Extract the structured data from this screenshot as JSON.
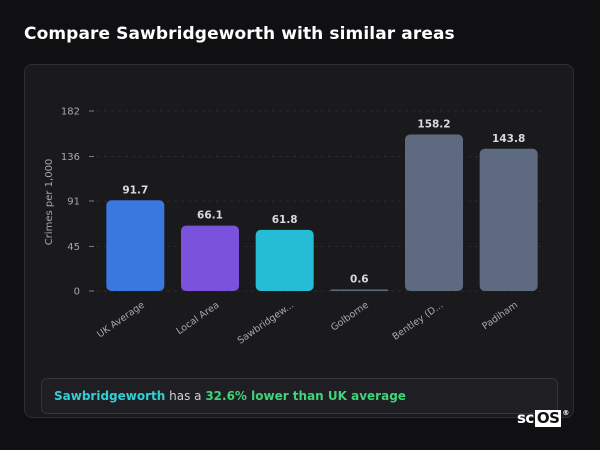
{
  "header": {
    "title": "Compare Sawbridgeworth with similar areas"
  },
  "chart_data": {
    "type": "bar",
    "ylabel": "Crimes per 1,000",
    "xlabel": "",
    "categories": [
      "UK Average",
      "Local Area",
      "Sawbridgew...",
      "Golborne",
      "Bentley (D...",
      "Padiham"
    ],
    "values": [
      91.7,
      66.1,
      61.8,
      0.6,
      158.2,
      143.8
    ],
    "value_labels": [
      "91.7",
      "66.1",
      "61.8",
      "0.6",
      "158.2",
      "143.8"
    ],
    "colors": [
      "#3a78e0",
      "#7b52dc",
      "#25bcd6",
      "#5d6a80",
      "#5d6a80",
      "#5d6a80"
    ],
    "yticks": [
      0,
      45,
      91,
      136,
      182
    ],
    "ylim": [
      0,
      182
    ],
    "grid": true,
    "legend": "none"
  },
  "summary": {
    "place": "Sawbridgeworth",
    "middle": " has a ",
    "delta": "32.6% lower than UK average"
  },
  "branding": {
    "logo_sc": "sc",
    "logo_os": "OS",
    "logo_reg": "®"
  }
}
